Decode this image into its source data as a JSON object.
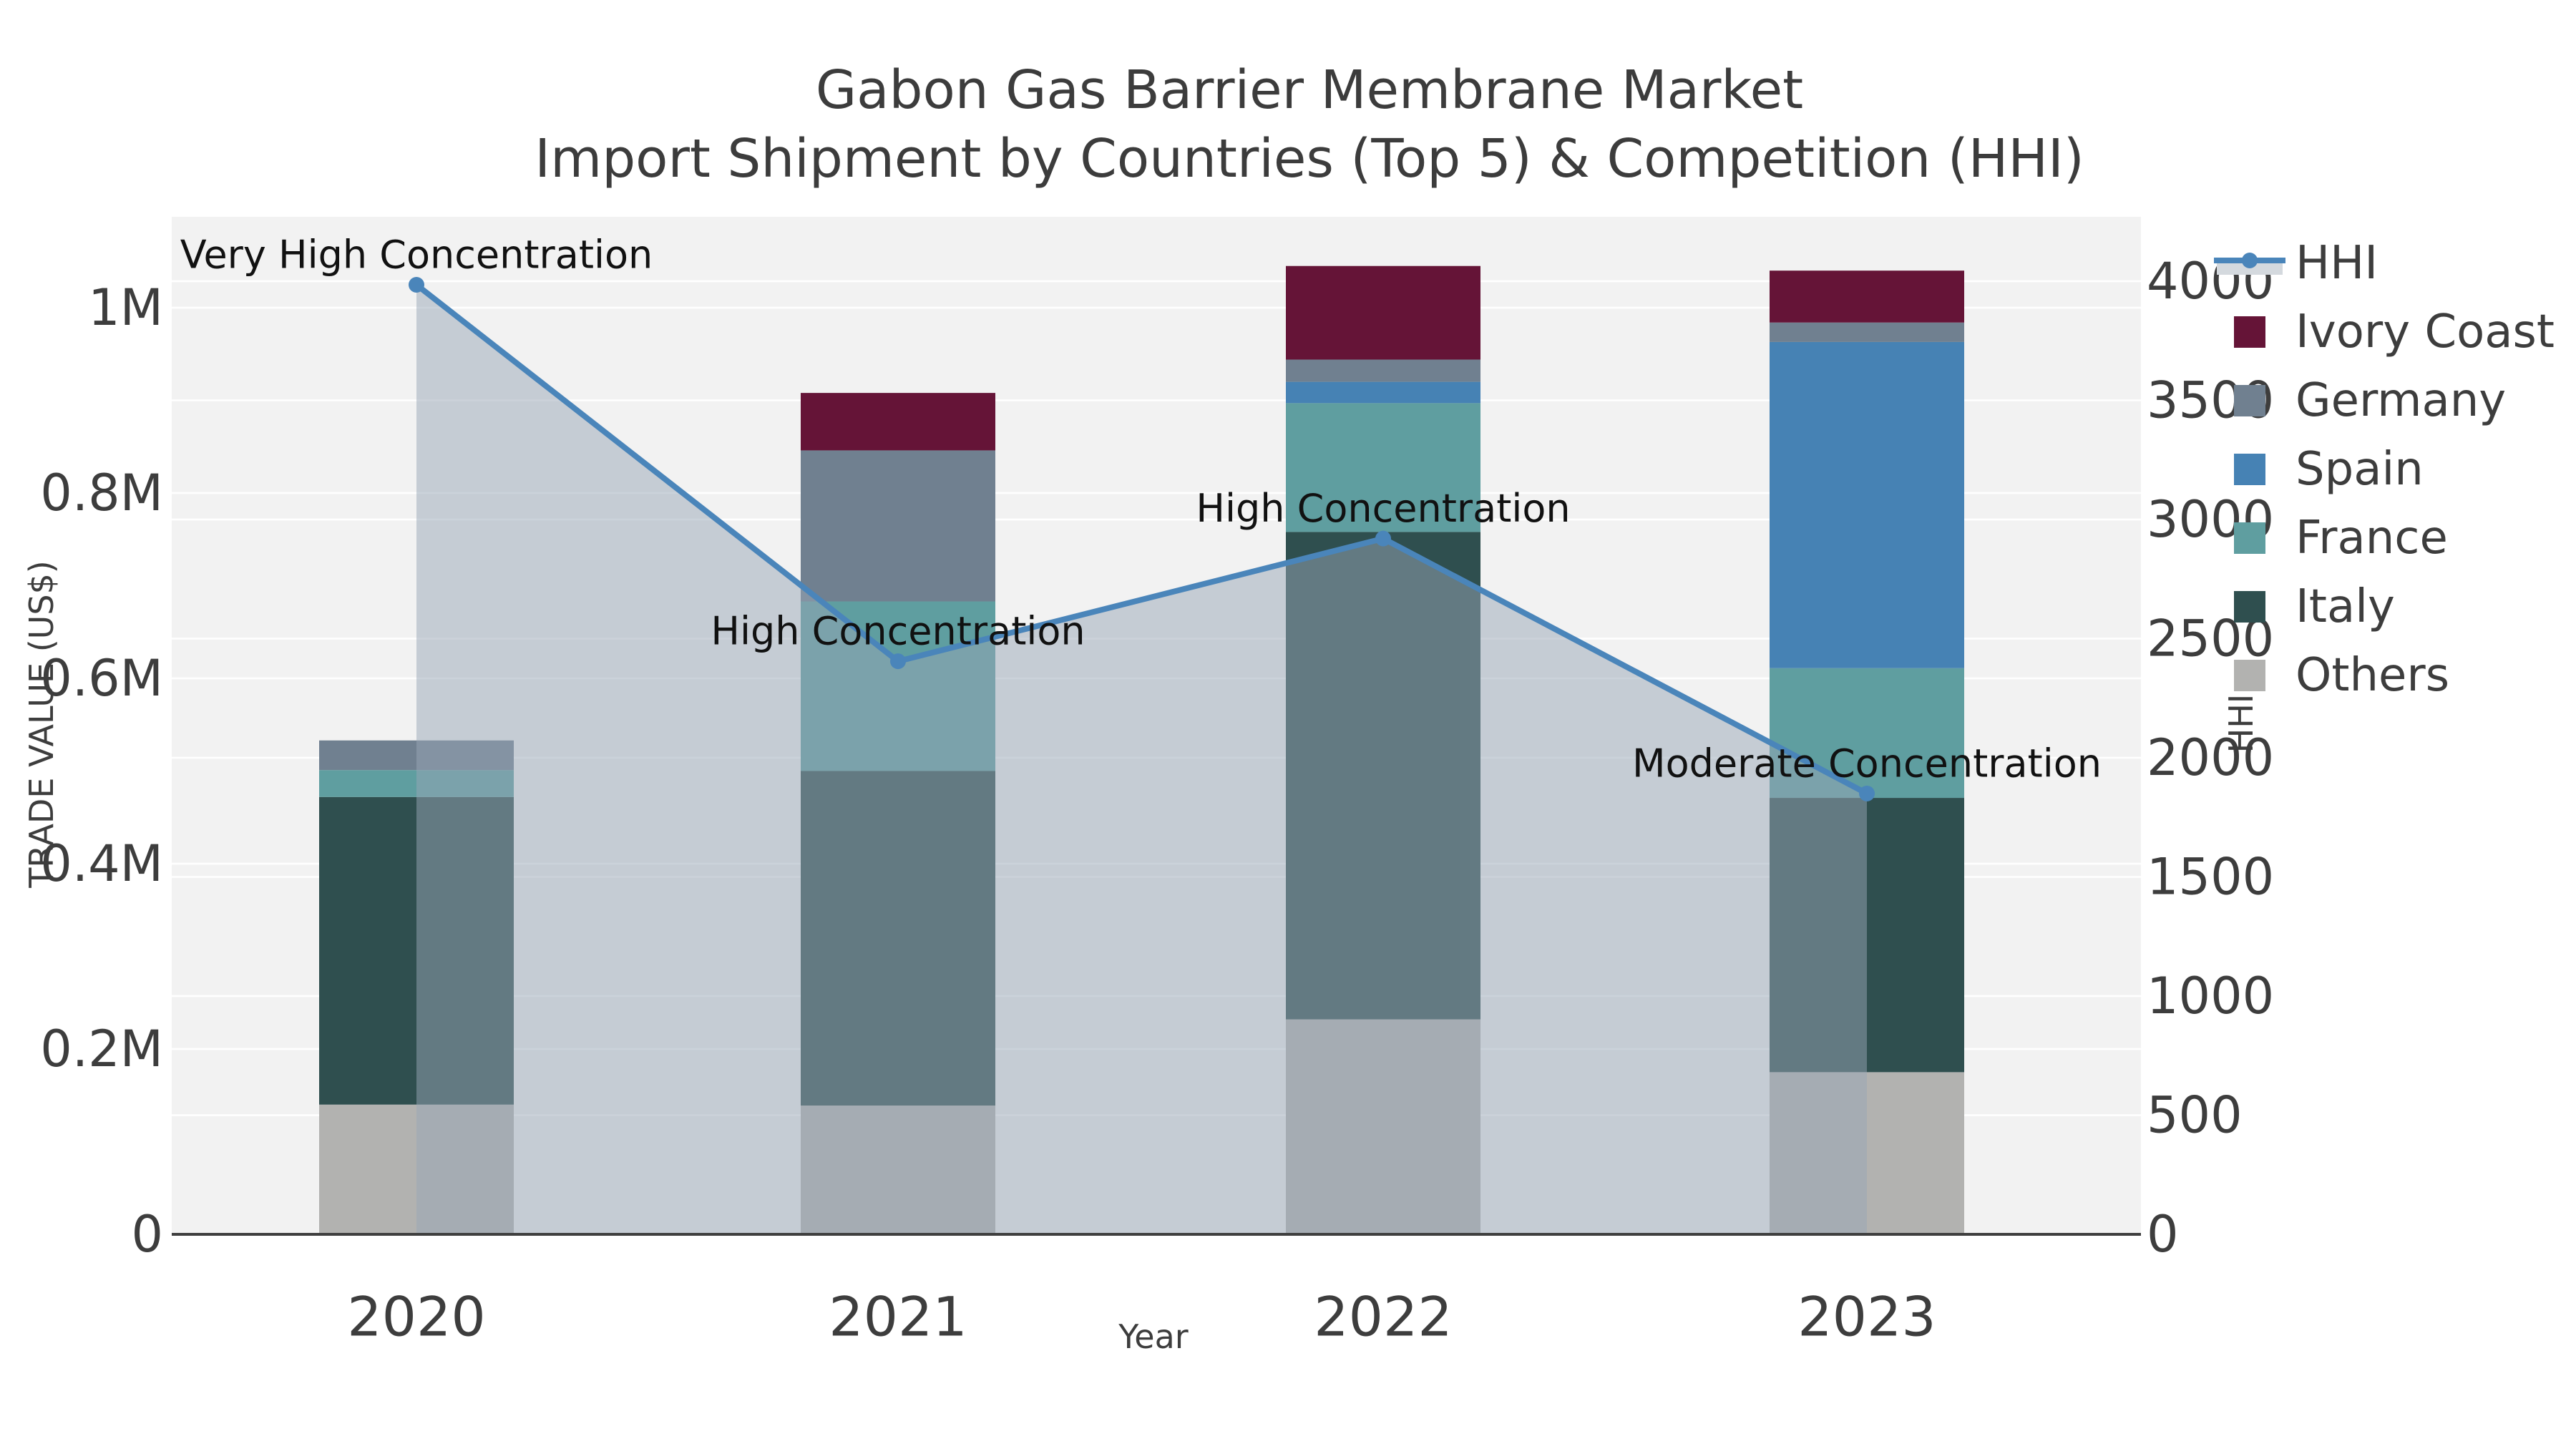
{
  "figure": {
    "title_line1": "Gabon Gas Barrier Membrane Market",
    "title_line2": "Import Shipment by Countries (Top 5) & Competition (HHI)"
  },
  "chart_data": {
    "type": "bar",
    "subtype": "stacked-bars-with-line-overlay",
    "categories": [
      "2020",
      "2021",
      "2022",
      "2023"
    ],
    "xlabel": "Year",
    "ylabel_left": "TRADE VALUE (US$)",
    "ylabel_right": "HHI",
    "ylim_left": [
      0,
      1100000
    ],
    "ylim_right": [
      0,
      4270
    ],
    "grid": "on",
    "legend_position": "upper-right-outside",
    "panel_color": "#f2f2f2",
    "gridline_color": "#ffffff",
    "axis_line_color": "#3f3f3f",
    "text_color": "#3d3d3d",
    "annotation_color": "#111111",
    "series": [
      {
        "name": "Others",
        "color": "#b2b2b0",
        "values": [
          140000,
          139000,
          232000,
          175000
        ]
      },
      {
        "name": "Italy",
        "color": "#2F4F4F",
        "values": [
          332000,
          361000,
          526000,
          296000
        ]
      },
      {
        "name": "France",
        "color": "#5F9EA0",
        "values": [
          29000,
          183000,
          139000,
          140000
        ]
      },
      {
        "name": "Spain",
        "color": "#4682B4",
        "values": [
          0,
          0,
          23000,
          352000
        ]
      },
      {
        "name": "Germany",
        "color": "#708090",
        "values": [
          32000,
          163000,
          24000,
          21000
        ]
      },
      {
        "name": "Ivory Coast",
        "color": "#651437",
        "values": [
          0,
          62000,
          101000,
          56000
        ]
      }
    ],
    "line_series": {
      "name": "HHI",
      "color": "#4a85ba",
      "area_fill": "rgba(152,165,182,0.5)",
      "legend_band_color": "#d4d9de",
      "values": [
        3985,
        2405,
        2920,
        1850
      ]
    },
    "annotations": [
      {
        "category": "2020",
        "text": "Very High Concentration"
      },
      {
        "category": "2021",
        "text": "High Concentration"
      },
      {
        "category": "2022",
        "text": "High Concentration"
      },
      {
        "category": "2023",
        "text": "Moderate Concentration"
      }
    ],
    "left_ticks": [
      {
        "value": 0,
        "label": "0"
      },
      {
        "value": 200000,
        "label": "0.2M"
      },
      {
        "value": 400000,
        "label": "0.4M"
      },
      {
        "value": 600000,
        "label": "0.6M"
      },
      {
        "value": 800000,
        "label": "0.8M"
      },
      {
        "value": 1000000,
        "label": "1M"
      }
    ],
    "right_ticks": [
      {
        "value": 0,
        "label": "0"
      },
      {
        "value": 500,
        "label": "500"
      },
      {
        "value": 1000,
        "label": "1000"
      },
      {
        "value": 1500,
        "label": "1500"
      },
      {
        "value": 2000,
        "label": "2000"
      },
      {
        "value": 2500,
        "label": "2500"
      },
      {
        "value": 3000,
        "label": "3000"
      },
      {
        "value": 3500,
        "label": "3500"
      },
      {
        "value": 4000,
        "label": "4000"
      }
    ],
    "legend": [
      "HHI",
      "Ivory Coast",
      "Germany",
      "Spain",
      "France",
      "Italy",
      "Others"
    ]
  }
}
